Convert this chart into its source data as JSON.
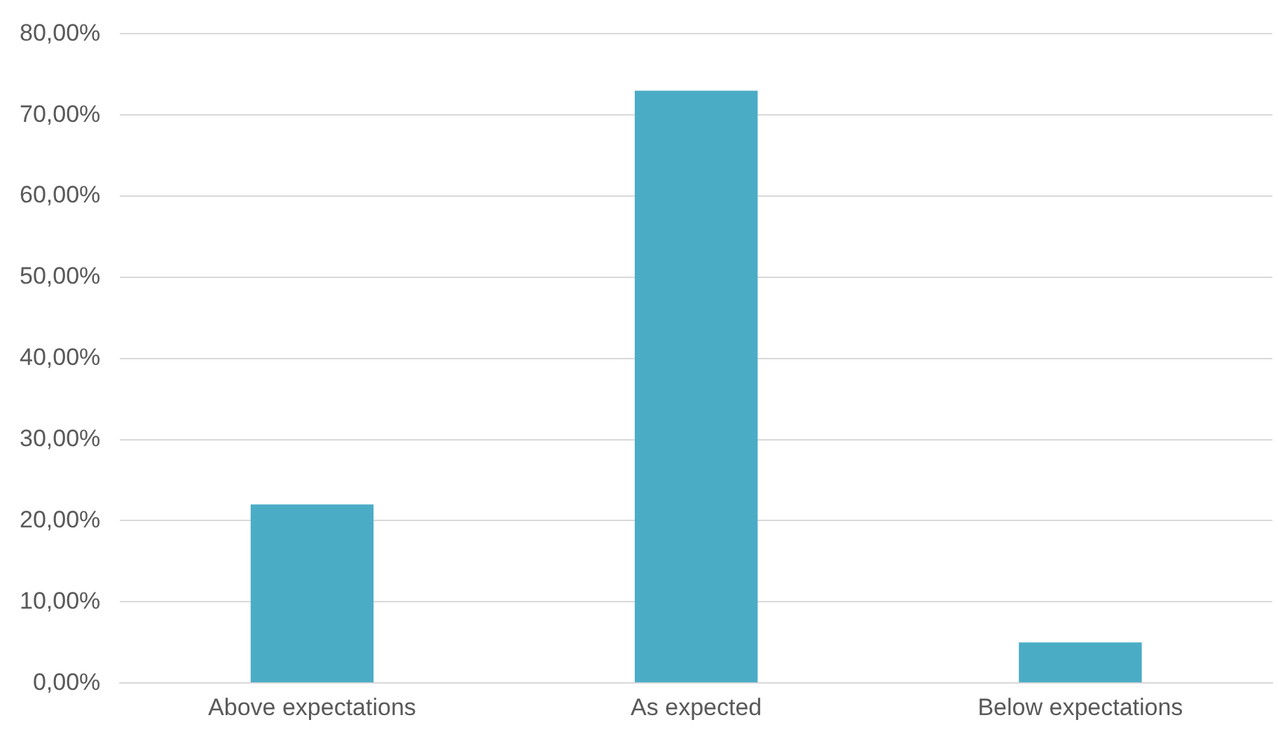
{
  "chart_data": {
    "type": "bar",
    "categories": [
      "Above expectations",
      "As expected",
      "Below expectations"
    ],
    "values": [
      22,
      73,
      5
    ],
    "color": "#4bacc6",
    "ylim": [
      0,
      80
    ],
    "yticks": [
      {
        "value": 0,
        "label": "0,00%"
      },
      {
        "value": 10,
        "label": "10,00%"
      },
      {
        "value": 20,
        "label": "20,00%"
      },
      {
        "value": 30,
        "label": "30,00%"
      },
      {
        "value": 40,
        "label": "40,00%"
      },
      {
        "value": 50,
        "label": "50,00%"
      },
      {
        "value": 60,
        "label": "60,00%"
      },
      {
        "value": 70,
        "label": "70,00%"
      },
      {
        "value": 80,
        "label": "80,00%"
      }
    ],
    "grid": "y",
    "legend": false
  }
}
